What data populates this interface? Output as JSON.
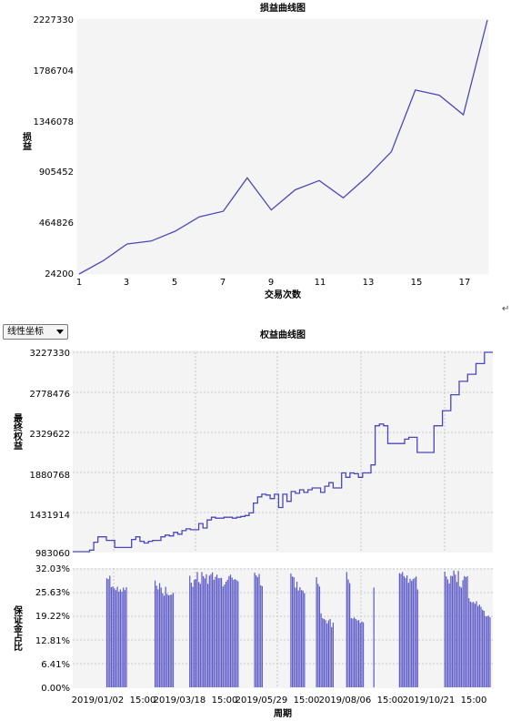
{
  "scale_selector": {
    "selected": "线性坐标"
  },
  "return_mark": "↵",
  "chart_data": [
    {
      "type": "line",
      "title": "损益曲线图",
      "xlabel": "交易次数",
      "ylabel": "损益",
      "x": [
        1,
        2,
        3,
        4,
        5,
        6,
        7,
        8,
        9,
        10,
        11,
        12,
        13,
        14,
        15,
        16,
        17,
        18
      ],
      "y": [
        24200,
        139000,
        285000,
        310000,
        395000,
        520000,
        568000,
        858000,
        580000,
        755000,
        835000,
        685000,
        870000,
        1085000,
        1620000,
        1575000,
        1405000,
        2227330
      ],
      "xlim": [
        1,
        18
      ],
      "ylim": [
        24200,
        2227330
      ],
      "xticks": [
        "1",
        "3",
        "5",
        "7",
        "9",
        "11",
        "13",
        "15",
        "17"
      ],
      "yticks": [
        "2227330",
        "1786704",
        "1346078",
        "905452",
        "464826",
        "24200"
      ],
      "grid": false,
      "line_color": "#4b47b8"
    },
    {
      "type": "line",
      "title": "权益曲线图",
      "xlabel": "",
      "ylabel": "最终权益",
      "x": [
        0,
        2,
        4,
        5,
        6,
        8,
        10,
        12,
        13,
        14,
        15,
        16,
        17,
        18,
        19,
        21,
        22,
        23,
        24,
        25,
        26,
        27,
        28,
        29,
        30,
        31,
        32,
        33,
        34,
        36,
        37,
        38,
        39,
        40,
        41,
        42,
        43,
        44,
        45,
        46,
        47,
        48,
        49,
        50,
        51,
        52,
        53,
        54,
        55,
        56,
        57,
        58,
        59,
        60,
        61,
        62,
        63,
        64,
        65,
        66,
        67,
        68,
        69,
        70,
        71,
        72,
        73,
        74,
        75,
        76,
        77,
        78,
        79,
        80,
        82,
        84,
        86,
        88,
        90,
        92,
        94,
        96,
        98,
        100
      ],
      "y": [
        983060,
        983060,
        1000000,
        1090000,
        1150000,
        1110000,
        1030000,
        1030000,
        1030000,
        1120000,
        1150000,
        1100000,
        1080000,
        1100000,
        1110000,
        1150000,
        1170000,
        1160000,
        1200000,
        1180000,
        1220000,
        1240000,
        1230000,
        1230000,
        1300000,
        1250000,
        1340000,
        1370000,
        1360000,
        1370000,
        1370000,
        1360000,
        1370000,
        1380000,
        1390000,
        1420000,
        1530000,
        1600000,
        1630000,
        1620000,
        1580000,
        1630000,
        1480000,
        1630000,
        1550000,
        1660000,
        1640000,
        1680000,
        1650000,
        1680000,
        1700000,
        1700000,
        1650000,
        1720000,
        1760000,
        1700000,
        1700000,
        1870000,
        1820000,
        1870000,
        1860000,
        1820000,
        1870000,
        1870000,
        1960000,
        2400000,
        2420000,
        2400000,
        2200000,
        2200000,
        2200000,
        2200000,
        2250000,
        2270000,
        2100000,
        2100000,
        2400000,
        2570000,
        2750000,
        2900000,
        2980000,
        3100000,
        3227330,
        3227330
      ],
      "xlim": [
        0,
        100
      ],
      "ylim": [
        983060,
        3227330
      ],
      "yticks": [
        "3227330",
        "2778476",
        "2329622",
        "1880768",
        "1431914",
        "983060"
      ],
      "grid": true,
      "line_color": "#4b47b8"
    },
    {
      "type": "bar",
      "title": "",
      "xlabel": "周期",
      "ylabel": "保证金占比",
      "ylim": [
        0,
        32.03
      ],
      "yticks": [
        "32.03%",
        "25.63%",
        "19.22%",
        "12.81%",
        "6.41%",
        "0.00%"
      ],
      "xticks": [
        "2019/01/02  15:00",
        "2019/03/18  15:00",
        "2019/05/29  15:00",
        "2019/08/06  15:00",
        "2019/10/21  15:00"
      ],
      "grid": true,
      "bar_color": "#5f5cc8",
      "values": [
        0,
        0,
        0,
        0,
        0,
        0,
        0,
        0,
        0,
        0,
        0,
        0,
        0,
        0,
        0,
        0,
        0,
        0,
        0,
        0,
        0,
        29.5,
        29.3,
        30.2,
        27.1,
        27.3,
        26.8,
        26.3,
        27.2,
        25.9,
        26.5,
        25.9,
        27.0,
        26.3,
        27.1,
        0,
        0,
        0,
        0,
        0,
        0,
        0,
        0,
        0,
        0,
        0,
        0,
        0,
        0,
        0,
        0,
        0,
        0,
        28.9,
        27.5,
        26.5,
        28.2,
        27.0,
        25.5,
        24.8,
        27.2,
        25.3,
        24.9,
        25.0,
        25.1,
        25.6,
        0,
        0,
        0,
        0,
        0,
        0,
        0,
        0,
        0,
        0,
        30.2,
        28.3,
        27.2,
        29.1,
        29.3,
        31.2,
        28.5,
        28.0,
        31.2,
        30.1,
        29.5,
        30.6,
        28.0,
        30.2,
        30.6,
        31.1,
        29.1,
        29.9,
        30.5,
        29.5,
        29.6,
        29.6,
        27.3,
        27.8,
        28.6,
        29.1,
        30.1,
        30.5,
        29.7,
        29.1,
        29.3,
        29.0,
        28.7,
        0,
        0,
        0,
        0,
        0,
        0,
        0,
        0,
        0,
        0,
        31.0,
        30.3,
        29.8,
        30.7,
        27.6,
        27.4,
        0,
        0,
        0,
        0,
        0,
        0,
        0,
        0,
        0,
        0,
        0,
        0,
        0,
        0,
        0,
        0,
        0,
        0,
        30.8,
        30.0,
        29.8,
        27.0,
        28.6,
        26.2,
        27.1,
        26.3,
        26.2,
        25.5,
        0,
        0,
        0,
        0,
        0,
        0,
        0,
        29.8,
        28.0,
        27.3,
        20.0,
        18.7,
        18.5,
        18.2,
        17.3,
        18.1,
        18.5,
        16.3,
        17.5,
        0,
        0,
        0,
        0,
        0,
        0,
        0,
        0,
        31.2,
        29.2,
        28.2,
        18.7,
        18.6,
        18.9,
        18.5,
        18.1,
        18.2,
        17.4,
        17.8,
        17.6,
        0,
        0,
        0,
        0,
        0,
        0,
        27.0,
        0,
        0,
        0,
        0,
        0,
        0,
        0,
        0,
        0,
        0,
        0,
        0,
        0,
        0,
        0,
        0,
        30.9,
        30.7,
        31.2,
        30.1,
        29.6,
        30.3,
        28.3,
        29.4,
        28.8,
        29.3,
        29.6,
        30.0,
        26.5,
        0,
        0,
        0,
        0,
        0,
        0,
        0,
        0,
        0,
        0,
        0,
        0,
        0,
        0,
        0,
        0,
        0,
        31.3,
        30.0,
        29.2,
        28.1,
        30.2,
        30.1,
        31.6,
        30.5,
        28.5,
        31.5,
        27.3,
        27.0,
        29.0,
        30.1,
        29.8,
        30.1,
        24.1,
        23.2,
        23.0,
        23.1,
        22.6,
        23.3,
        22.0,
        22.4,
        21.8,
        21.0,
        20.7,
        19.3,
        19.2,
        19.4,
        19.0
      ]
    }
  ]
}
